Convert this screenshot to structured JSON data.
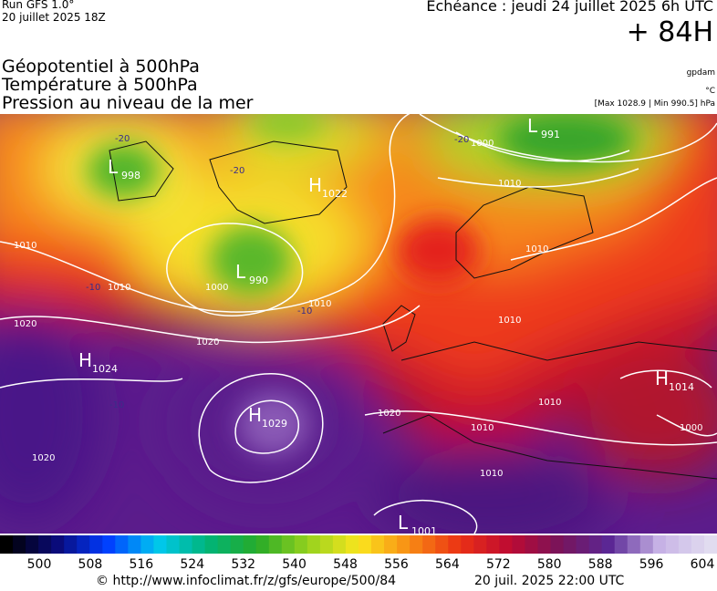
{
  "header": {
    "run": "Run GFS 1.0°",
    "run_date": "20 juillet 2025 18Z",
    "forecast": "Echéance : jeudi 24 juillet 2025 6h UTC",
    "lead": "+ 84H"
  },
  "fields": {
    "geopotential": "Géopotentiel à 500hPa",
    "temperature": "Température à 500hPa",
    "pressure": "Pression au niveau de la mer",
    "geopotential_unit": "gpdam",
    "temperature_unit": "°C",
    "pressure_range": "[Max 1028.9 | Min 990.5] hPa"
  },
  "centers": [
    {
      "letter": "L",
      "value": "998"
    },
    {
      "letter": "H",
      "value": "1022"
    },
    {
      "letter": "L",
      "value": "990"
    },
    {
      "letter": "L",
      "value": "991"
    },
    {
      "letter": "H",
      "value": "1024"
    },
    {
      "letter": "H",
      "value": "1029"
    },
    {
      "letter": "H",
      "value": "1014"
    },
    {
      "letter": "L",
      "value": "1001"
    }
  ],
  "isobar_labels": [
    "1010",
    "1010",
    "1020",
    "1020",
    "1010",
    "1000",
    "1000",
    "1010",
    "1010",
    "1010",
    "1020",
    "1010",
    "1010",
    "1020",
    "1010",
    "1000"
  ],
  "temperature_labels": [
    "-20",
    "-20",
    "-10",
    "-10",
    "-20",
    "-10"
  ],
  "colorbar": {
    "labels": [
      500,
      508,
      516,
      524,
      532,
      540,
      548,
      556,
      564,
      572,
      580,
      588,
      596,
      604
    ]
  },
  "footer": {
    "source": "© http://www.infoclimat.fr/z/gfs/europe/500/84",
    "timestamp": "20 juil. 2025 22:00 UTC"
  }
}
